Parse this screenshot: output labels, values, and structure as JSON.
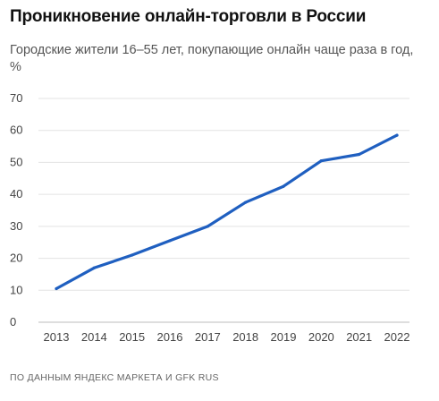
{
  "chart_data": {
    "type": "line",
    "title": "Проникновение онлайн-торговли в России",
    "subtitle": "Городские жители 16–55 лет, покупающие онлайн чаще раза в год, %",
    "x": [
      "2013",
      "2014",
      "2015",
      "2016",
      "2017",
      "2018",
      "2019",
      "2020",
      "2021",
      "2022"
    ],
    "series": [
      {
        "values": [
          10.5,
          17,
          21,
          25.5,
          30,
          37.5,
          42.5,
          50.5,
          52.5,
          58.5
        ],
        "color": "#1f5fc0"
      }
    ],
    "yticks": [
      "0",
      "10",
      "20",
      "30",
      "40",
      "50",
      "60",
      "70"
    ],
    "ylim": [
      0,
      70
    ],
    "grid": true,
    "source": "ПО ДАННЫМ ЯНДЕКС МАРКЕТА И GFK RUS"
  }
}
